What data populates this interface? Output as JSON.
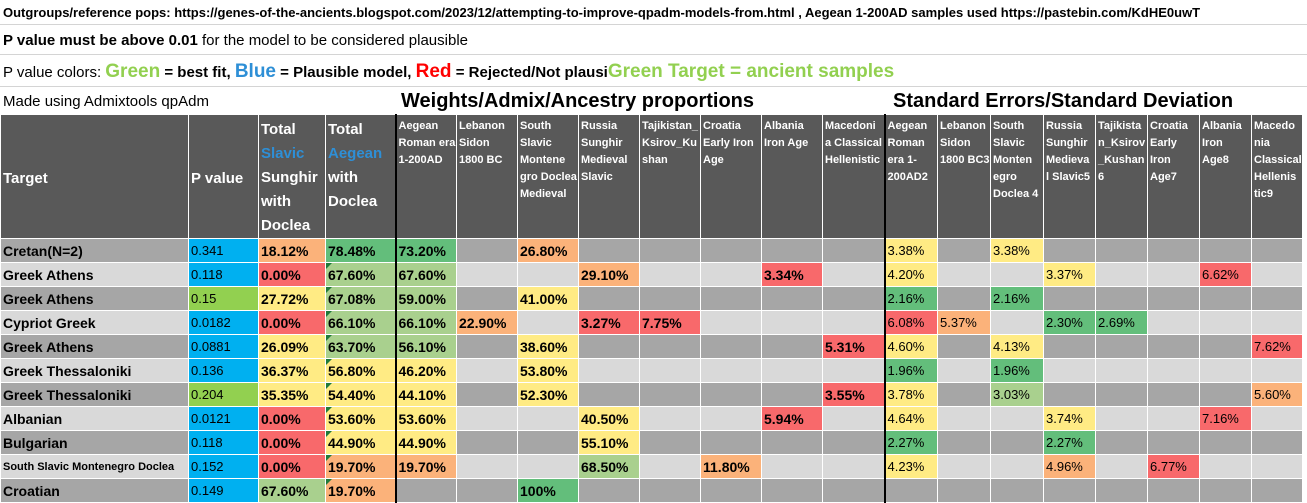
{
  "header": {
    "line1": "Outgroups/reference pops: https://genes-of-the-ancients.blogspot.com/2023/12/attempting-to-improve-qpadm-models-from.html , Aegean 1-200AD samples used https://pastebin.com/KdHE0uwT",
    "line2_bold": "P value must be above 0.01",
    "line2_rest": " for the model to be considered plausible",
    "legend_prefix": "P value colors: ",
    "legend_green": "Green",
    "legend_green_text": " = best fit, ",
    "legend_blue": "Blue",
    "legend_blue_text": " = Plausible model, ",
    "legend_red": "Red",
    "legend_red_text": " = Rejected/Not plausi",
    "legend_target": "Green Target = ancient samples",
    "made_with": "Made using Admixtools qpAdm",
    "weights_title": "Weights/Admix/Ancestry proportions",
    "errors_title": "Standard Errors/Standard Deviation"
  },
  "colors": {
    "p_blue": "#00b0f0",
    "p_green": "#92d050",
    "cell_green": "#63be7b",
    "cell_yellow": "#ffeb84",
    "cell_orange": "#fbb27a",
    "cell_red": "#f8696b",
    "header_bg": "#595959"
  },
  "table": {
    "headers": {
      "target": "Target",
      "pvalue": "P value",
      "total_slavic_1": "Total",
      "total_slavic_2": "Slavic",
      "total_slavic_3": "Sunghir with Doclea",
      "total_aegean_1": "Total",
      "total_aegean_2": "Aegean",
      "total_aegean_3": "with Doclea",
      "w_aegean": "Aegean Roman era 1-200AD",
      "w_lebanon": "Lebanon Sidon 1800 BC",
      "w_southslavic": "South Slavic Montene gro Doclea Medieval",
      "w_russia": "Russia Sunghir Medieval Slavic",
      "w_tajik": "Tajikistan_ Ksirov_Ku shan",
      "w_croatia": "Croatia Early Iron Age",
      "w_albania": "Albania Iron Age",
      "w_macedonia": "Macedoni a Classical Hellenistic",
      "e_aegean": "Aegean Roman era 1-200AD2",
      "e_lebanon": "Lebanon Sidon 1800 BC3",
      "e_southslavic": "South Slavic Monten egro Doclea 4",
      "e_russia": "Russia Sunghir Medieva l Slavic5",
      "e_tajik": "Tajikista n_Ksirov _Kushan 6",
      "e_croatia": "Croatia Early Iron Age7",
      "e_albania": "Albania Iron Age8",
      "e_macedonia": "Macedo nia Classical Hellenis tic9"
    },
    "rows": [
      {
        "target": "Cretan(N=2)",
        "p": "0.341",
        "slavic": "18.12%",
        "aegean": "78.48%",
        "w": [
          "73.20%",
          "",
          "26.80%",
          "",
          "",
          "",
          "",
          ""
        ],
        "e": [
          "3.38%",
          "",
          "3.38%",
          "",
          "",
          "",
          "",
          ""
        ]
      },
      {
        "target": "Greek Athens",
        "p": "0.118",
        "slavic": "0.00%",
        "aegean": "67.60%",
        "w": [
          "67.60%",
          "",
          "",
          "29.10%",
          "",
          "",
          "3.34%",
          ""
        ],
        "e": [
          "4.20%",
          "",
          "",
          "3.37%",
          "",
          "",
          "6.62%",
          ""
        ]
      },
      {
        "target": "Greek Athens",
        "p": "0.15",
        "slavic": "27.72%",
        "aegean": "67.08%",
        "w": [
          "59.00%",
          "",
          "41.00%",
          "",
          "",
          "",
          "",
          ""
        ],
        "e": [
          "2.16%",
          "",
          "2.16%",
          "",
          "",
          "",
          "",
          ""
        ]
      },
      {
        "target": "Cypriot Greek",
        "p": "0.0182",
        "slavic": "0.00%",
        "aegean": "66.10%",
        "w": [
          "66.10%",
          "22.90%",
          "",
          "3.27%",
          "7.75%",
          "",
          "",
          ""
        ],
        "e": [
          "6.08%",
          "5.37%",
          "",
          "2.30%",
          "2.69%",
          "",
          "",
          ""
        ]
      },
      {
        "target": "Greek Athens",
        "p": "0.0881",
        "slavic": "26.09%",
        "aegean": "63.70%",
        "w": [
          "56.10%",
          "",
          "38.60%",
          "",
          "",
          "",
          "",
          "5.31%"
        ],
        "e": [
          "4.60%",
          "",
          "4.13%",
          "",
          "",
          "",
          "",
          "7.62%"
        ]
      },
      {
        "target": "Greek Thessaloniki",
        "p": "0.136",
        "slavic": "36.37%",
        "aegean": "56.80%",
        "w": [
          "46.20%",
          "",
          "53.80%",
          "",
          "",
          "",
          "",
          ""
        ],
        "e": [
          "1.96%",
          "",
          "1.96%",
          "",
          "",
          "",
          "",
          ""
        ]
      },
      {
        "target": "Greek Thessaloniki",
        "p": "0.204",
        "slavic": "35.35%",
        "aegean": "54.40%",
        "w": [
          "44.10%",
          "",
          "52.30%",
          "",
          "",
          "",
          "",
          "3.55%"
        ],
        "e": [
          "3.78%",
          "",
          "3.03%",
          "",
          "",
          "",
          "",
          "5.60%"
        ]
      },
      {
        "target": "Albanian",
        "p": "0.0121",
        "slavic": "0.00%",
        "aegean": "53.60%",
        "w": [
          "53.60%",
          "",
          "",
          "40.50%",
          "",
          "",
          "5.94%",
          ""
        ],
        "e": [
          "4.64%",
          "",
          "",
          "3.74%",
          "",
          "",
          "7.16%",
          ""
        ]
      },
      {
        "target": "Bulgarian",
        "p": "0.118",
        "slavic": "0.00%",
        "aegean": "44.90%",
        "w": [
          "44.90%",
          "",
          "",
          "55.10%",
          "",
          "",
          "",
          ""
        ],
        "e": [
          "2.27%",
          "",
          "",
          "2.27%",
          "",
          "",
          "",
          ""
        ]
      },
      {
        "target": "South Slavic Montenegro Doclea",
        "p": "0.152",
        "slavic": "0.00%",
        "aegean": "19.70%",
        "w": [
          "19.70%",
          "",
          "",
          "68.50%",
          "",
          "11.80%",
          "",
          ""
        ],
        "e": [
          "4.23%",
          "",
          "",
          "4.96%",
          "",
          "6.77%",
          "",
          ""
        ]
      },
      {
        "target": "Croatian",
        "p": "0.149",
        "slavic": "67.60%",
        "aegean": "19.70%",
        "w": [
          "",
          "",
          "100%",
          "",
          "",
          "",
          "",
          ""
        ],
        "e": [
          "",
          "",
          "",
          "",
          "",
          "",
          "",
          ""
        ]
      }
    ]
  }
}
